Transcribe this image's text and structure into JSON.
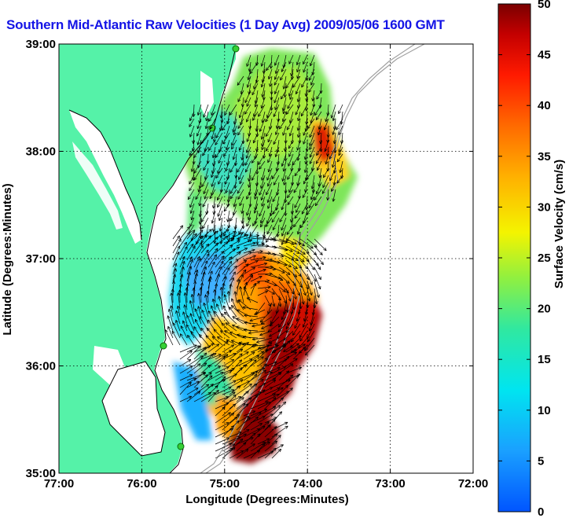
{
  "title": "Southern Mid-Atlantic Raw Velocities (1 Day Avg) 2009/05/06 1600 GMT",
  "x_axis": {
    "label": "Longitude (Degrees:Minutes)",
    "ticks": [
      "77:00",
      "76:00",
      "75:00",
      "74:00",
      "73:00",
      "72:00"
    ],
    "range": [
      -77,
      -72
    ]
  },
  "y_axis": {
    "label": "Latitude (Degrees:Minutes)",
    "ticks": [
      "39:00",
      "38:00",
      "37:00",
      "36:00",
      "35:00"
    ],
    "range": [
      35,
      39
    ]
  },
  "colorbar": {
    "label": "Surface Velocity (cm/s)",
    "ticks": [
      "50",
      "45",
      "40",
      "35",
      "30",
      "25",
      "20",
      "15",
      "10",
      "5",
      "0"
    ],
    "range": [
      0,
      50
    ]
  },
  "colors": {
    "land": "#55f2a8",
    "title": "#1414e6",
    "coast": "#000000",
    "bathymetry": "#a0a0a0"
  },
  "grid": "dotted",
  "chart_data": {
    "type": "heatmap",
    "units": "cm/s",
    "regions": [
      {
        "lon_range": [
          -75.3,
          -74.1
        ],
        "lat_range": [
          37.3,
          38.6
        ],
        "speed": 16
      },
      {
        "lon_range": [
          -74.0,
          -73.7
        ],
        "lat_range": [
          37.6,
          38.2
        ],
        "speed": 42
      },
      {
        "lon_range": [
          -75.2,
          -74.3
        ],
        "lat_range": [
          36.4,
          37.1
        ],
        "speed": 33
      },
      {
        "lon_range": [
          -74.6,
          -74.0
        ],
        "lat_range": [
          35.2,
          36.6
        ],
        "speed": 48
      },
      {
        "lon_range": [
          -75.8,
          -75.0
        ],
        "lat_range": [
          35.8,
          37.0
        ],
        "speed": 12
      }
    ]
  }
}
